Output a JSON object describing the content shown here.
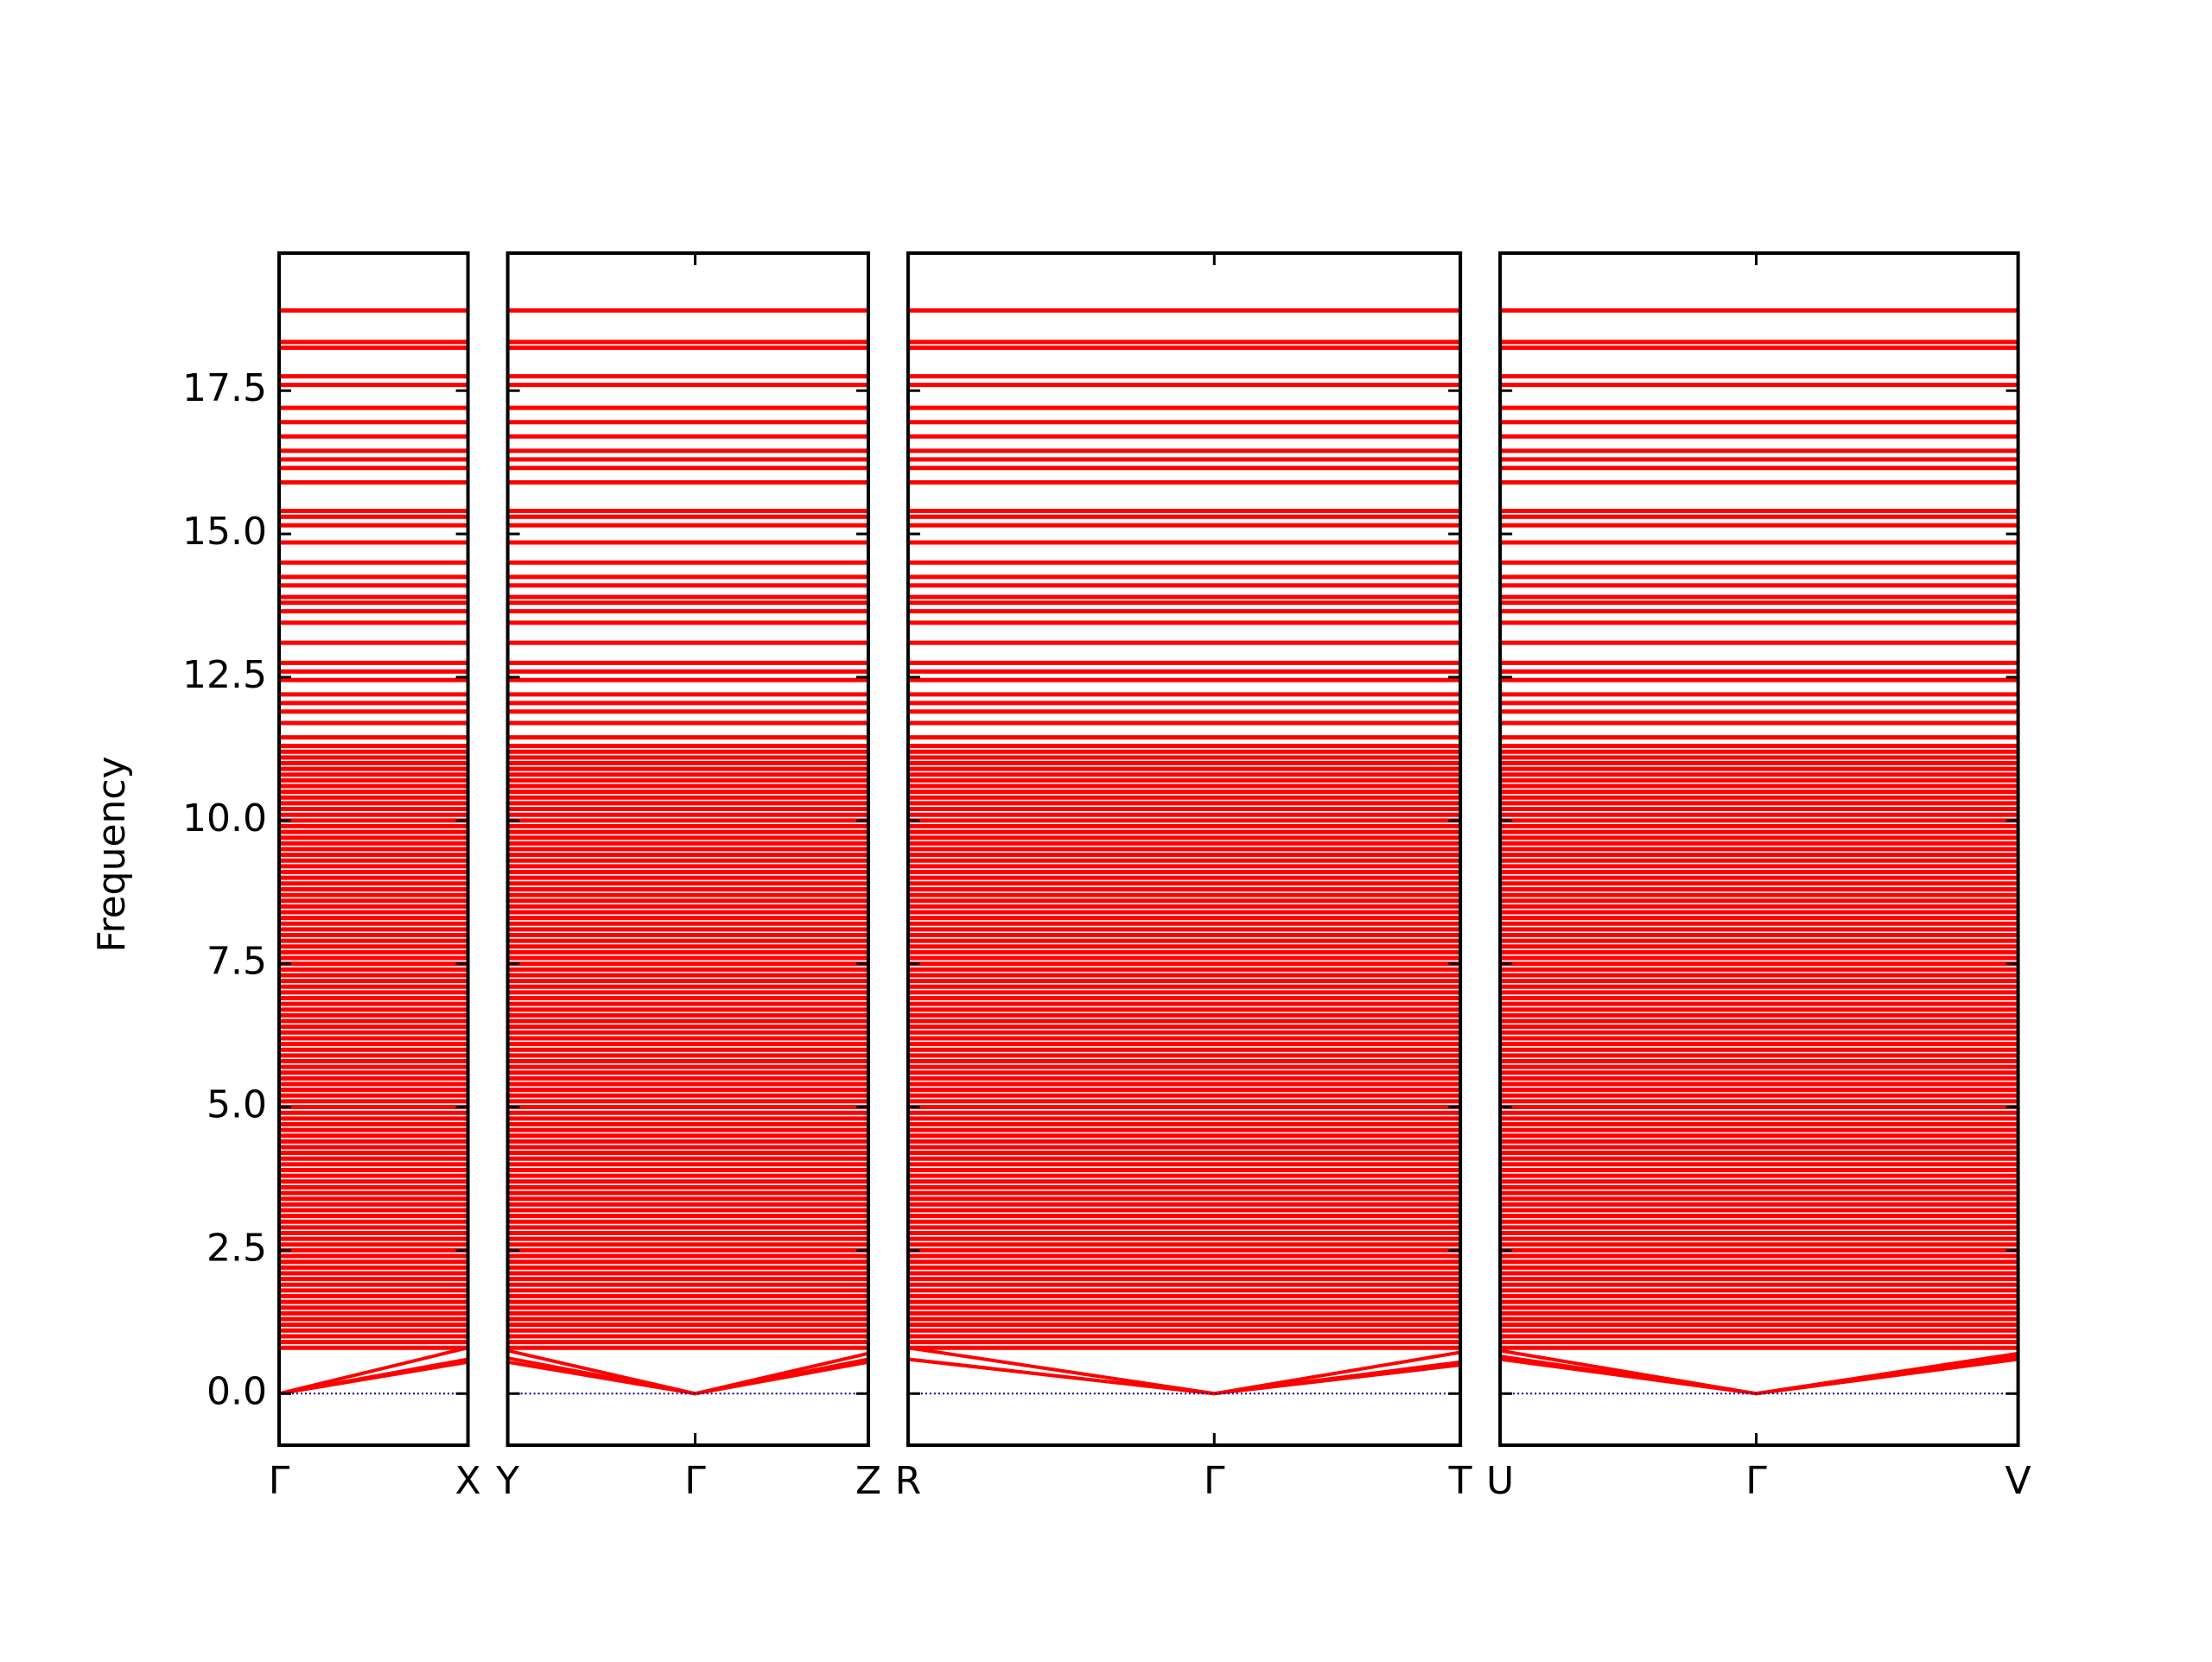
{
  "chart_data": {
    "type": "band-structure",
    "y_label": "Frequency",
    "ylim": [
      -0.9,
      19.9
    ],
    "yticks": [
      {
        "value": 0,
        "label": "0.0"
      },
      2.5,
      {
        "value": 5,
        "label": "5.0"
      },
      7.5,
      {
        "value": 10,
        "label": "10.0"
      },
      12.5,
      {
        "value": 15,
        "label": "15.0"
      },
      17.5
    ],
    "color": "#ff0000",
    "zero_line": {
      "value": 0,
      "color": "#000080"
    },
    "bands": [
      0.8,
      0.9,
      1,
      1.1,
      1.2,
      1.3,
      1.4,
      1.5,
      1.6,
      1.7,
      1.8,
      1.9,
      2,
      2.1,
      2.2,
      2.3,
      2.4,
      2.5,
      2.6,
      2.7,
      2.8,
      2.9,
      3,
      3.1,
      3.2,
      3.3,
      3.4,
      3.5,
      3.6,
      3.7,
      3.8,
      3.9,
      4,
      4.1,
      4.2,
      4.3,
      4.4,
      4.5,
      4.6,
      4.7,
      4.8,
      4.9,
      5,
      5.1,
      5.2,
      5.3,
      5.4,
      5.5,
      5.6,
      5.7,
      5.8,
      5.9,
      6,
      6.1,
      6.2,
      6.3,
      6.4,
      6.5,
      6.6,
      6.7,
      6.8,
      6.9,
      7,
      7.1,
      7.2,
      7.3,
      7.4,
      7.5,
      7.6,
      7.7,
      7.8,
      7.9,
      8,
      8.1,
      8.2,
      8.3,
      8.4,
      8.5,
      8.6,
      8.7,
      8.8,
      8.9,
      9,
      9.1,
      9.2,
      9.3,
      9.4,
      9.5,
      9.6,
      9.7,
      9.8,
      9.9,
      10,
      10.1,
      10.2,
      10.3,
      10.4,
      10.5,
      10.6,
      10.7,
      10.8,
      10.9,
      11,
      11.1,
      11.2,
      11.3,
      11.45,
      11.7,
      11.9,
      12.05,
      12.2,
      12.45,
      12.6,
      12.75,
      13.1,
      13.45,
      13.65,
      13.8,
      13.9,
      14.1,
      14.25,
      14.5,
      14.85,
      15.15,
      15.3,
      15.4,
      15.9,
      16.15,
      16.3,
      16.45,
      16.7,
      16.95,
      17.2,
      17.6,
      17.75,
      18.25,
      18.35,
      18.9
    ],
    "panels": [
      {
        "labels": [
          "Γ",
          "X"
        ],
        "x": [
          0,
          0.132
        ],
        "branches": [
          [
            0,
            0.55
          ],
          [
            0,
            0.6
          ],
          [
            0,
            0.8
          ]
        ]
      },
      {
        "labels": [
          "Y",
          "Γ",
          "Z"
        ],
        "x": [
          0,
          0.131,
          0.252
        ],
        "branches": [
          [
            0.55,
            0,
            0.55
          ],
          [
            0.62,
            0,
            0.6
          ],
          [
            0.75,
            0,
            0.7
          ]
        ]
      },
      {
        "labels": [
          "R",
          "Γ",
          "T"
        ],
        "x": [
          0,
          0.214,
          0.386
        ],
        "branches": [
          [
            0.6,
            0,
            0.5
          ],
          [
            0.6,
            0,
            0.55
          ],
          [
            0.8,
            0,
            0.72
          ]
        ]
      },
      {
        "labels": [
          "U",
          "Γ",
          "V"
        ],
        "x": [
          0,
          0.179,
          0.362
        ],
        "branches": [
          [
            0.6,
            0,
            0.6
          ],
          [
            0.65,
            0,
            0.65
          ],
          [
            0.75,
            0,
            0.7
          ]
        ]
      }
    ]
  }
}
